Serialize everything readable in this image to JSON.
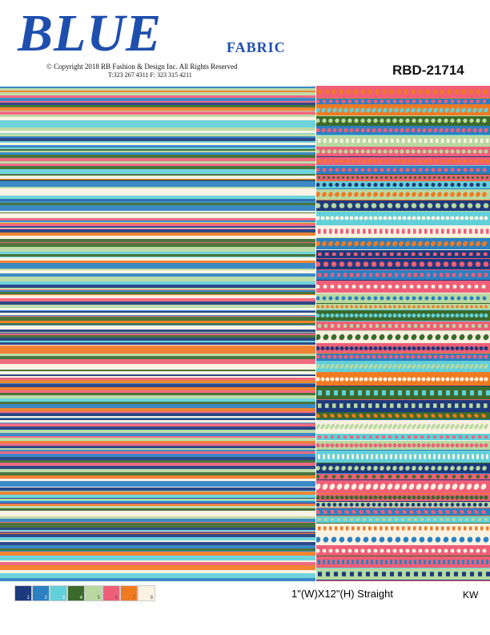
{
  "header": {
    "logo": "BLUE",
    "subtitle": "FABRIC",
    "copyright": "© Copyright  2018 RB Fashion & Design Inc. All Rights Reserved",
    "phone": "T:323 267 4311   F: 323 315 4211",
    "code": "RBD-21714"
  },
  "footer": {
    "swatches": [
      {
        "label": "1",
        "color": "#1d3a7c"
      },
      {
        "label": "2",
        "color": "#2b80c2"
      },
      {
        "label": "3",
        "color": "#62d0d8"
      },
      {
        "label": "4",
        "color": "#3b6a2c"
      },
      {
        "label": "5",
        "color": "#b9d8a1"
      },
      {
        "label": "6",
        "color": "#ef5f78"
      },
      {
        "label": "7",
        "color": "#f07a22"
      },
      {
        "label": "8",
        "color": "#fbf2e2"
      }
    ],
    "repeat": "1\"(W)X12\"(H) Straight",
    "initials": "KW"
  }
}
